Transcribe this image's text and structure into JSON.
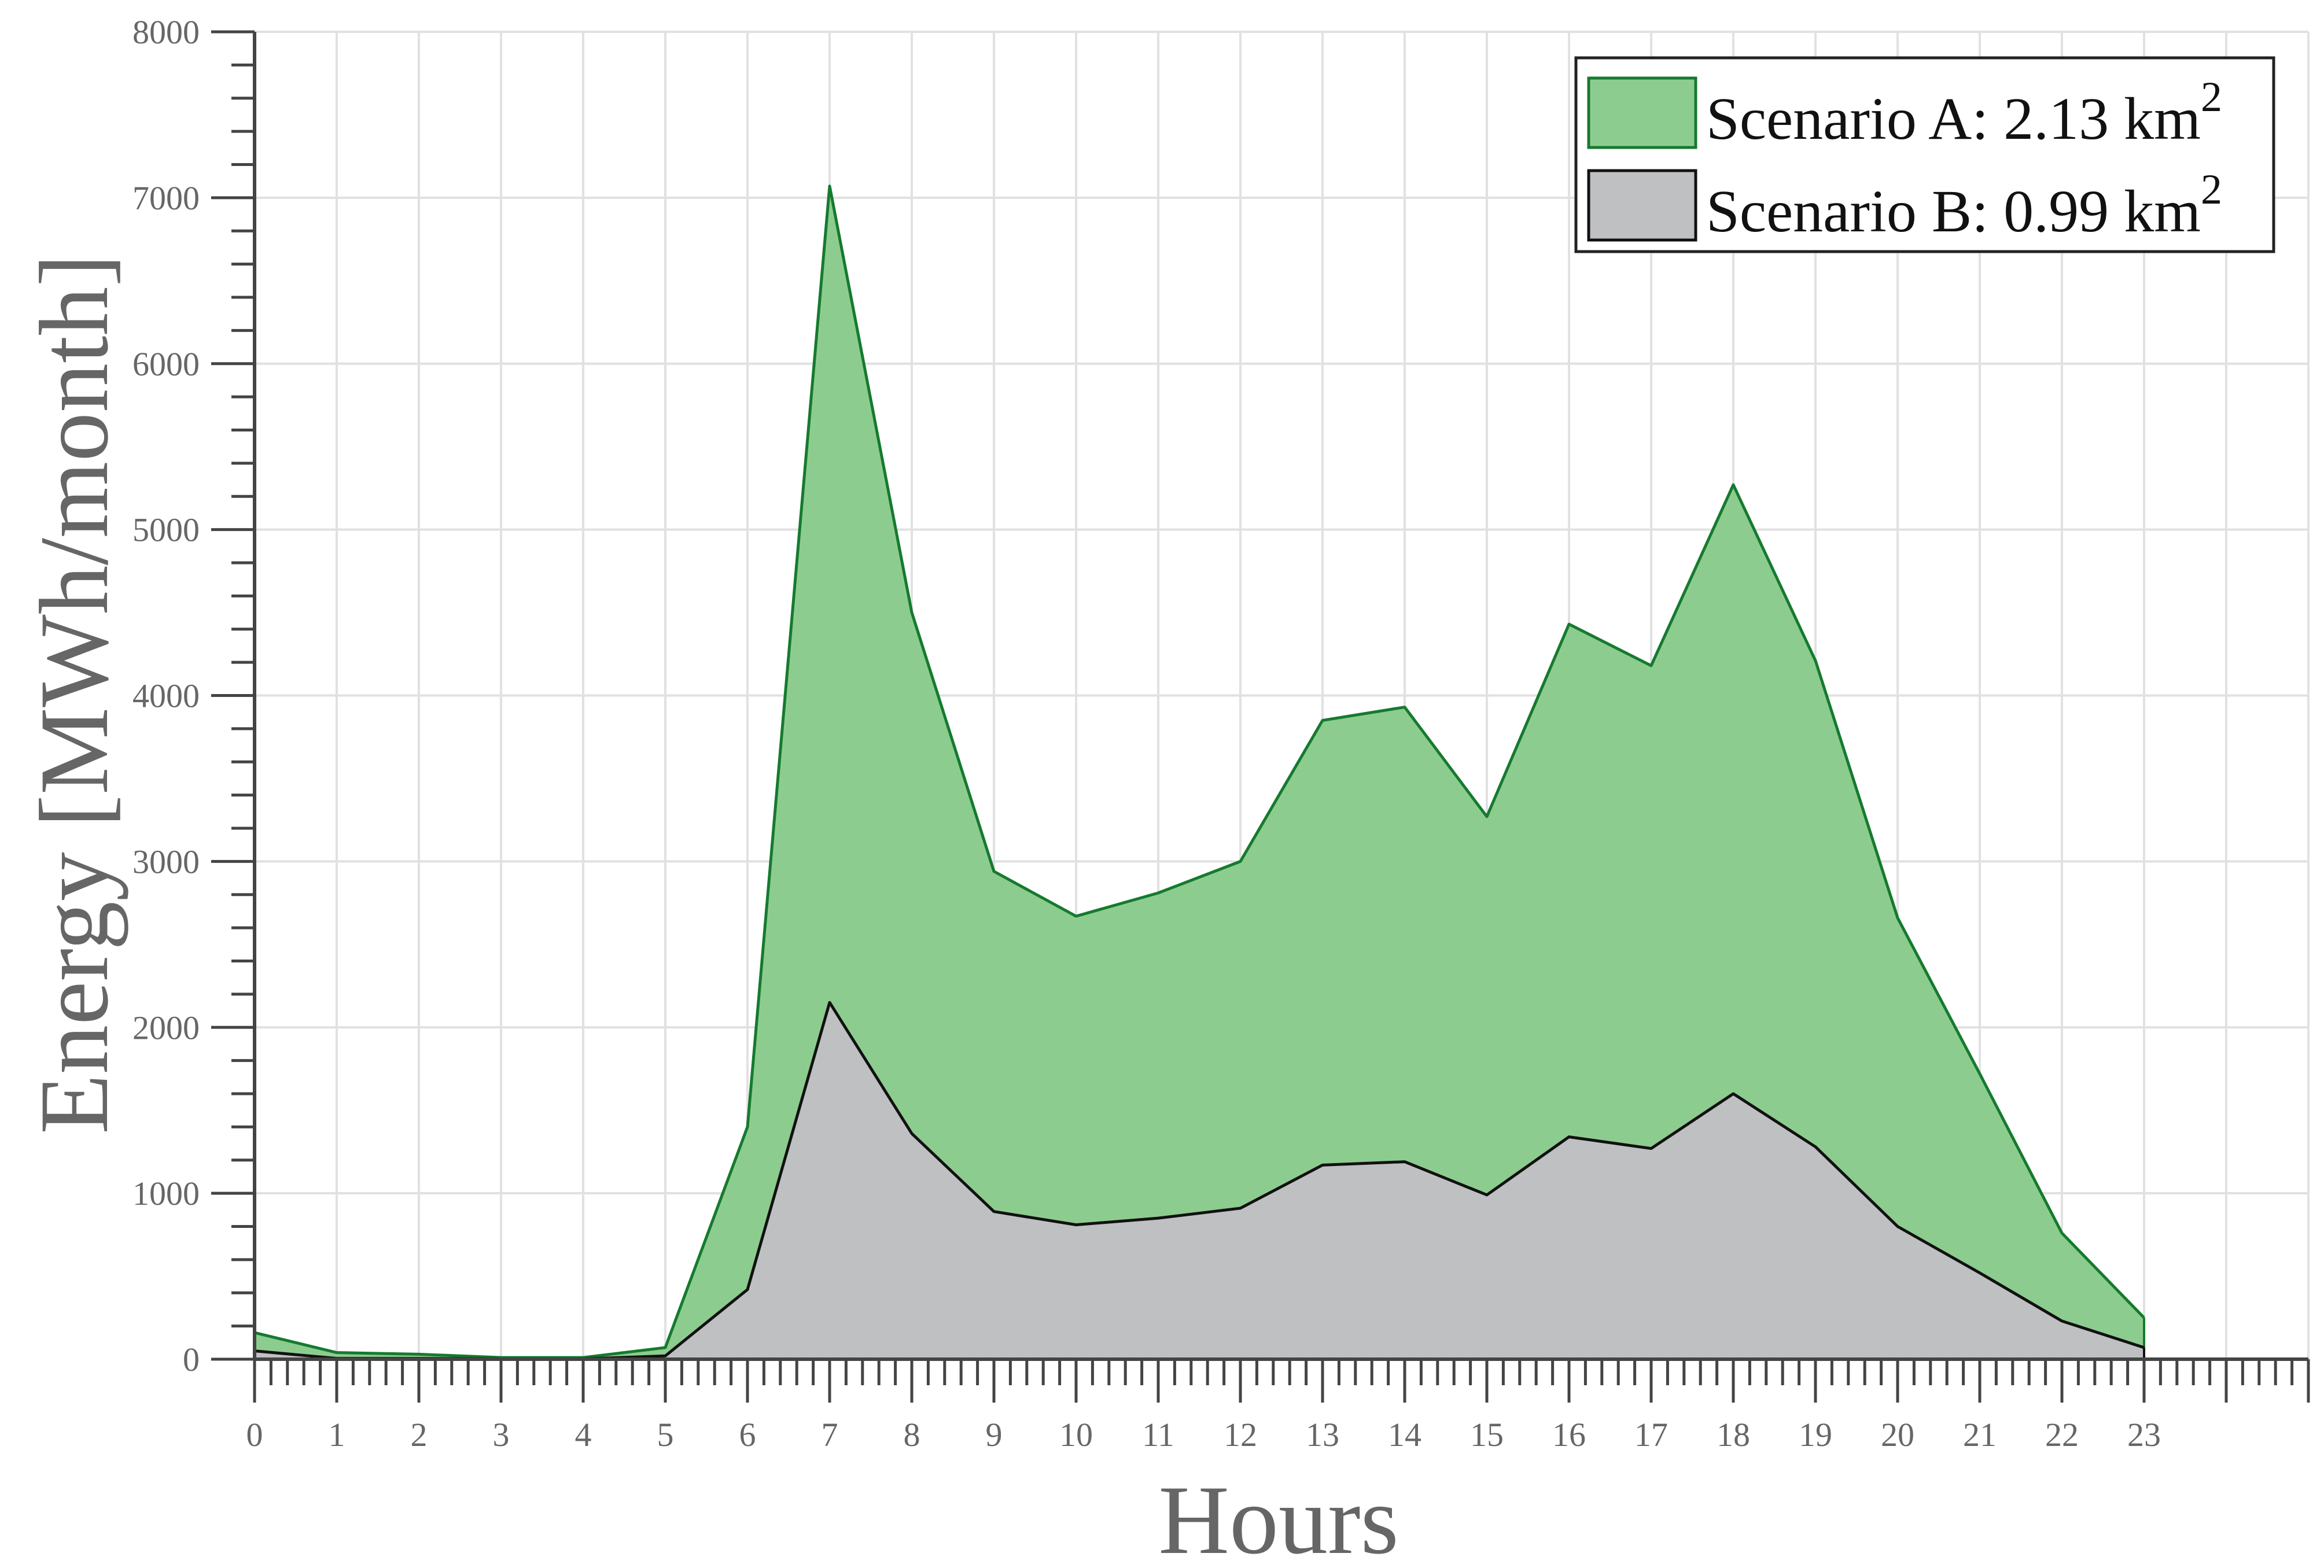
{
  "chart_data": {
    "type": "area",
    "xlabel": "Hours",
    "ylabel": "Energy [MWh/month]",
    "xlim": [
      0,
      25
    ],
    "ylim": [
      0,
      8000
    ],
    "grid": true,
    "legend_position": "top-right",
    "x_ticks": [
      "0",
      "1",
      "2",
      "3",
      "4",
      "5",
      "6",
      "7",
      "8",
      "9",
      "10",
      "11",
      "12",
      "13",
      "14",
      "15",
      "16",
      "17",
      "18",
      "19",
      "20",
      "21",
      "22",
      "23"
    ],
    "y_ticks": [
      "0",
      "1000",
      "2000",
      "3000",
      "4000",
      "5000",
      "6000",
      "7000",
      "8000"
    ],
    "x": [
      0,
      1,
      2,
      3,
      4,
      5,
      6,
      7,
      8,
      9,
      10,
      11,
      12,
      13,
      14,
      15,
      16,
      17,
      18,
      19,
      20,
      21,
      22,
      23
    ],
    "series": [
      {
        "name": "Scenario A: 2.13 km",
        "name_sup": "2",
        "color": "#8dcc8f",
        "edge": "#157a2f",
        "values": [
          160,
          40,
          30,
          10,
          10,
          70,
          1400,
          7070,
          4500,
          2940,
          2670,
          2810,
          3000,
          3850,
          3930,
          3270,
          4430,
          4180,
          5270,
          4210,
          2660,
          1720,
          760,
          250
        ]
      },
      {
        "name": "Scenario B: 0.99 km",
        "name_sup": "2",
        "color": "#bfc0c2",
        "edge": "#111111",
        "values": [
          50,
          5,
          5,
          2,
          2,
          20,
          420,
          2150,
          1360,
          890,
          810,
          850,
          910,
          1170,
          1190,
          990,
          1340,
          1270,
          1600,
          1280,
          800,
          520,
          230,
          70
        ]
      }
    ]
  }
}
